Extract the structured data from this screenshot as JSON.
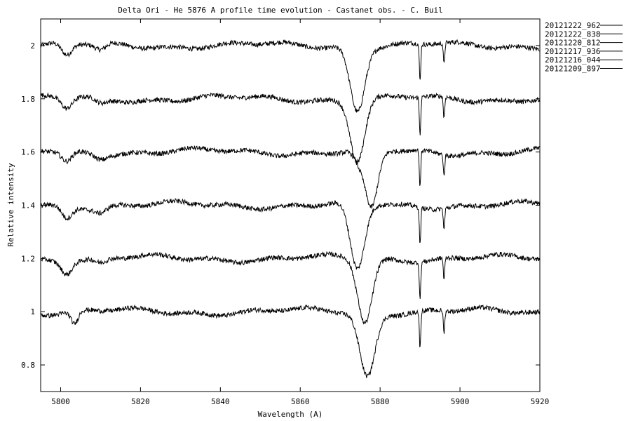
{
  "chart_data": {
    "type": "line",
    "title": "Delta Ori - He 5876 A profile time evolution - Castanet obs. - C. Buil",
    "xlabel": "Wavelength (A)",
    "ylabel": "Relative intensity",
    "xlim": [
      5795,
      5920
    ],
    "ylim": [
      0.7,
      2.1
    ],
    "x_ticks": [
      5800,
      5820,
      5840,
      5860,
      5880,
      5900,
      5920
    ],
    "x_tick_labels": [
      "5800",
      "5820",
      "5840",
      "5860",
      "5880",
      "5900",
      "5920"
    ],
    "y_ticks": [
      0.8,
      1.0,
      1.2,
      1.4,
      1.6,
      1.8,
      2.0
    ],
    "y_tick_labels": [
      "0.8",
      "1",
      "1.2",
      "1.4",
      "1.6",
      "1.8",
      "2"
    ],
    "grid": false,
    "legend_position": "outside-top-right",
    "series": [
      {
        "name": "20121222_962",
        "offset": 2.0,
        "line_center": 5874.3,
        "line_depth": 0.24,
        "line_width": 1.8,
        "feature_5801": 0.045,
        "feature_5809": 0.025
      },
      {
        "name": "20121222_838",
        "offset": 1.8,
        "line_center": 5874.3,
        "line_depth": 0.23,
        "line_width": 1.8,
        "feature_5801": 0.04,
        "feature_5809": 0.02
      },
      {
        "name": "20121220_812",
        "offset": 1.6,
        "line_center": 5874.6,
        "line_depth": 0.04,
        "line_width": 1.2,
        "feature_5801": 0.04,
        "feature_5809": 0.015,
        "second_center": 5877.8,
        "second_depth": 0.22
      },
      {
        "name": "20121217_936",
        "offset": 1.4,
        "line_center": 5874.3,
        "line_depth": 0.25,
        "line_width": 1.8,
        "feature_5801": 0.045,
        "feature_5809": 0.02
      },
      {
        "name": "20121216_044",
        "offset": 1.2,
        "line_center": 5876.2,
        "line_depth": 0.24,
        "line_width": 1.8,
        "feature_5801": 0.045,
        "feature_5809": 0.02
      },
      {
        "name": "20121209_897",
        "offset": 1.0,
        "line_center": 5876.8,
        "line_depth": 0.24,
        "line_width": 1.9,
        "feature_5801": 0.0,
        "feature_5809": 0.0,
        "feature_5803": 0.05
      }
    ],
    "narrow_lines": [
      {
        "x": 5890.0,
        "depth": 0.14
      },
      {
        "x": 5896.0,
        "depth": 0.08
      }
    ]
  },
  "colors": {
    "line": "#000000",
    "background": "#ffffff"
  }
}
